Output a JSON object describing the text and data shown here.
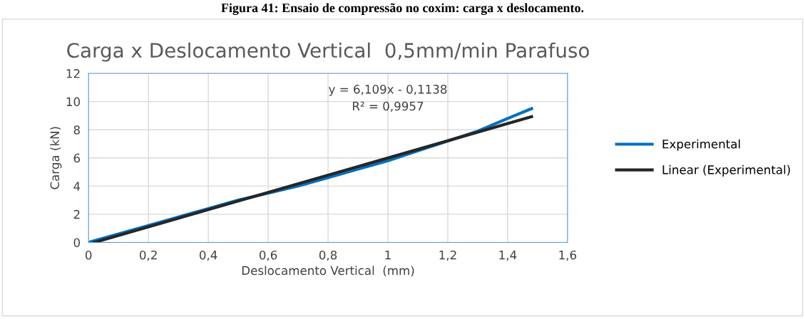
{
  "chart_data": {
    "type": "line",
    "title": "Carga x Deslocamento Vertical  0,5mm/min Parafuso",
    "xlabel": "Deslocamento Vertical  (mm)",
    "ylabel": "Carga (kN)",
    "series": [
      {
        "name": "Experimental",
        "color": "#0070c0",
        "x": [
          0,
          0.2,
          0.4,
          0.5,
          0.6,
          0.7,
          0.8,
          0.9,
          1.0,
          1.1,
          1.2,
          1.3,
          1.4,
          1.48
        ],
        "values": [
          0,
          1.2,
          2.4,
          3.0,
          3.5,
          4.0,
          4.6,
          5.2,
          5.8,
          6.5,
          7.2,
          7.9,
          8.8,
          9.5
        ]
      },
      {
        "name": "Linear (Experimental)",
        "color": "#262626",
        "x": [
          0.019,
          1.48
        ],
        "values": [
          0,
          8.93
        ]
      }
    ],
    "xlim": [
      0,
      1.6
    ],
    "xticks": [
      0,
      {
        "value": 0.2,
        "label": "0,2"
      },
      {
        "value": 0.4,
        "label": "0,4"
      },
      {
        "value": 0.6,
        "label": "0,6"
      },
      {
        "value": 0.8,
        "label": "0,8"
      },
      1,
      {
        "value": 1.2,
        "label": "1,2"
      },
      {
        "value": 1.4,
        "label": "1,4"
      },
      {
        "value": 1.6,
        "label": "1,6"
      }
    ],
    "ylim": [
      0,
      12
    ],
    "yticks": [
      0,
      2,
      4,
      6,
      8,
      10,
      12
    ],
    "grid": true,
    "legend": "right",
    "marker": "none",
    "line_style": "solid",
    "annotations": [
      "Figura 41: Ensaio de compressão no coxim: carga x deslocamento.",
      "y = 6,109x - 0,1138\nR² = 0,9957"
    ]
  }
}
